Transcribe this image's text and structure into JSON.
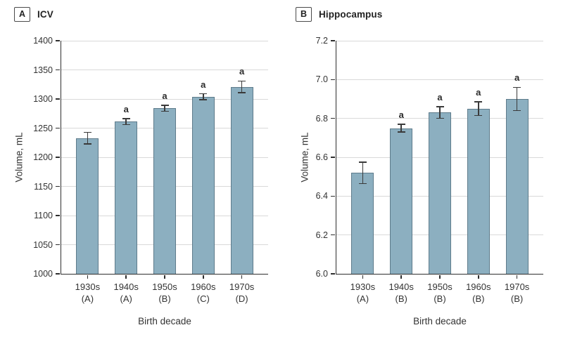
{
  "chart_data": [
    {
      "type": "bar",
      "panel_label": "A",
      "title": "ICV",
      "xlabel": "Birth decade",
      "ylabel": "Volume, mL",
      "ylim": [
        1000,
        1400
      ],
      "yticks": [
        1000,
        1050,
        1100,
        1150,
        1200,
        1250,
        1300,
        1350,
        1400
      ],
      "ytick_labels": [
        "1000",
        "1050",
        "1100",
        "1150",
        "1200",
        "1250",
        "1300",
        "1350",
        "1400"
      ],
      "grid": true,
      "legend": "none",
      "categories": [
        {
          "decade": "1930s",
          "group": "(A)"
        },
        {
          "decade": "1940s",
          "group": "(A)"
        },
        {
          "decade": "1950s",
          "group": "(B)"
        },
        {
          "decade": "1960s",
          "group": "(C)"
        },
        {
          "decade": "1970s",
          "group": "(D)"
        }
      ],
      "values": [
        1233,
        1261,
        1284,
        1304,
        1321
      ],
      "errors": [
        10,
        5,
        5,
        5,
        10
      ],
      "annotations": [
        "",
        "a",
        "a",
        "a",
        "a"
      ]
    },
    {
      "type": "bar",
      "panel_label": "B",
      "title": "Hippocampus",
      "xlabel": "Birth decade",
      "ylabel": "Volume, mL",
      "ylim": [
        6.0,
        7.2
      ],
      "yticks": [
        6.0,
        6.2,
        6.4,
        6.6,
        6.8,
        7.0,
        7.2
      ],
      "ytick_labels": [
        "6.0",
        "6.2",
        "6.4",
        "6.6",
        "6.8",
        "7.0",
        "7.2"
      ],
      "grid": true,
      "legend": "none",
      "categories": [
        {
          "decade": "1930s",
          "group": "(A)"
        },
        {
          "decade": "1940s",
          "group": "(B)"
        },
        {
          "decade": "1950s",
          "group": "(B)"
        },
        {
          "decade": "1960s",
          "group": "(B)"
        },
        {
          "decade": "1970s",
          "group": "(B)"
        }
      ],
      "values": [
        6.52,
        6.75,
        6.83,
        6.85,
        6.9
      ],
      "errors": [
        0.055,
        0.02,
        0.03,
        0.035,
        0.06
      ],
      "annotations": [
        "",
        "a",
        "a",
        "a",
        "a"
      ]
    }
  ],
  "colors": {
    "background": "#FFFFFF",
    "bar_fill": "#8CAFC0",
    "bar_border": "#5E7B8B",
    "grid_line": "#D9D9D9",
    "axis_line": "#2E2E2E",
    "error_bar": "#3A3A3A",
    "text": "#333333"
  }
}
